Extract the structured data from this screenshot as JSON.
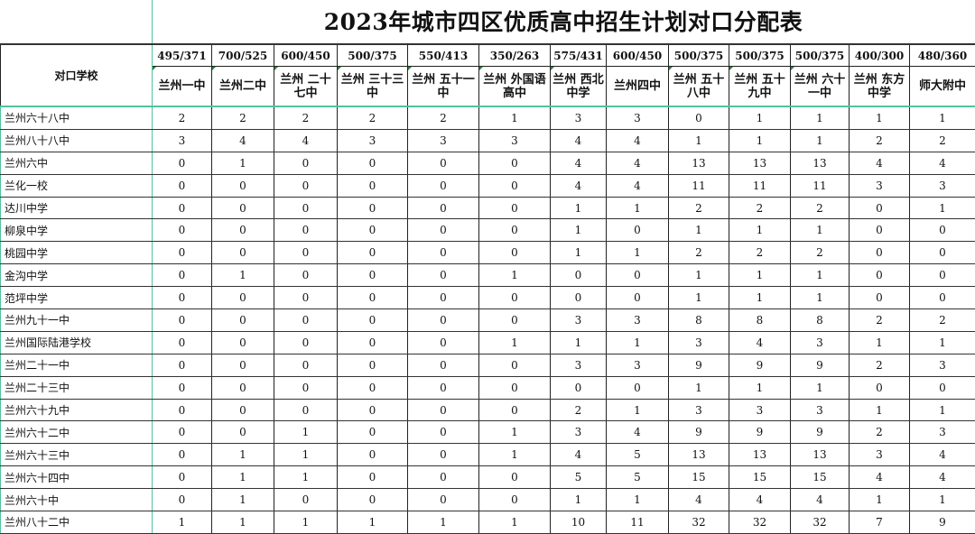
{
  "title": "2023年城市四区优质高中招生计划对口分配表",
  "corner_label": "对口学校",
  "columns": [
    {
      "quota": "495/371",
      "name": "兰州一中"
    },
    {
      "quota": "700/525",
      "name": "兰州二中"
    },
    {
      "quota": "600/450",
      "name": "兰州 二十七中"
    },
    {
      "quota": "500/375",
      "name": "兰州 三十三中"
    },
    {
      "quota": "550/413",
      "name": "兰州 五十一中"
    },
    {
      "quota": "350/263",
      "name": "兰州 外国语高中"
    },
    {
      "quota": "575/431",
      "name": "兰州 西北中学"
    },
    {
      "quota": "600/450",
      "name": "兰州四中"
    },
    {
      "quota": "500/375",
      "name": "兰州 五十八中"
    },
    {
      "quota": "500/375",
      "name": "兰州 五十九中"
    },
    {
      "quota": "500/375",
      "name": "兰州 六十一中"
    },
    {
      "quota": "400/300",
      "name": "兰州 东方中学"
    },
    {
      "quota": "480/360",
      "name": "师大附中"
    }
  ],
  "rows": [
    {
      "school": "兰州六十八中",
      "values": [
        "2",
        "2",
        "2",
        "2",
        "2",
        "1",
        "3",
        "3",
        "0",
        "1",
        "1",
        "1",
        "1"
      ]
    },
    {
      "school": "兰州八十八中",
      "values": [
        "3",
        "4",
        "4",
        "3",
        "3",
        "3",
        "4",
        "4",
        "1",
        "1",
        "1",
        "2",
        "2"
      ]
    },
    {
      "school": "兰州六中",
      "values": [
        "0",
        "1",
        "0",
        "0",
        "0",
        "0",
        "4",
        "4",
        "13",
        "13",
        "13",
        "4",
        "4"
      ]
    },
    {
      "school": "兰化一校",
      "values": [
        "0",
        "0",
        "0",
        "0",
        "0",
        "0",
        "4",
        "4",
        "11",
        "11",
        "11",
        "3",
        "3"
      ]
    },
    {
      "school": "达川中学",
      "values": [
        "0",
        "0",
        "0",
        "0",
        "0",
        "0",
        "1",
        "1",
        "2",
        "2",
        "2",
        "0",
        "1"
      ]
    },
    {
      "school": "柳泉中学",
      "values": [
        "0",
        "0",
        "0",
        "0",
        "0",
        "0",
        "1",
        "0",
        "1",
        "1",
        "1",
        "0",
        "0"
      ]
    },
    {
      "school": "桃园中学",
      "values": [
        "0",
        "0",
        "0",
        "0",
        "0",
        "0",
        "1",
        "1",
        "2",
        "2",
        "2",
        "0",
        "0"
      ]
    },
    {
      "school": "金沟中学",
      "values": [
        "0",
        "1",
        "0",
        "0",
        "0",
        "1",
        "0",
        "0",
        "1",
        "1",
        "1",
        "0",
        "0"
      ]
    },
    {
      "school": "范坪中学",
      "values": [
        "0",
        "0",
        "0",
        "0",
        "0",
        "0",
        "0",
        "0",
        "1",
        "1",
        "1",
        "0",
        "0"
      ]
    },
    {
      "school": "兰州九十一中",
      "values": [
        "0",
        "0",
        "0",
        "0",
        "0",
        "0",
        "3",
        "3",
        "8",
        "8",
        "8",
        "2",
        "2"
      ]
    },
    {
      "school": "兰州国际陆港学校",
      "values": [
        "0",
        "0",
        "0",
        "0",
        "0",
        "1",
        "1",
        "1",
        "3",
        "4",
        "3",
        "1",
        "1"
      ]
    },
    {
      "school": "兰州二十一中",
      "values": [
        "0",
        "0",
        "0",
        "0",
        "0",
        "0",
        "3",
        "3",
        "9",
        "9",
        "9",
        "2",
        "3"
      ]
    },
    {
      "school": "兰州二十三中",
      "values": [
        "0",
        "0",
        "0",
        "0",
        "0",
        "0",
        "0",
        "0",
        "1",
        "1",
        "1",
        "0",
        "0"
      ]
    },
    {
      "school": "兰州六十九中",
      "values": [
        "0",
        "0",
        "0",
        "0",
        "0",
        "0",
        "2",
        "1",
        "3",
        "3",
        "3",
        "1",
        "1"
      ]
    },
    {
      "school": "兰州六十二中",
      "values": [
        "0",
        "0",
        "1",
        "0",
        "0",
        "1",
        "3",
        "4",
        "9",
        "9",
        "9",
        "2",
        "3"
      ]
    },
    {
      "school": "兰州六十三中",
      "values": [
        "0",
        "1",
        "1",
        "0",
        "0",
        "1",
        "4",
        "5",
        "13",
        "13",
        "13",
        "3",
        "4"
      ]
    },
    {
      "school": "兰州六十四中",
      "values": [
        "0",
        "1",
        "1",
        "0",
        "0",
        "0",
        "5",
        "5",
        "15",
        "15",
        "15",
        "4",
        "4"
      ]
    },
    {
      "school": "兰州六十中",
      "values": [
        "0",
        "1",
        "0",
        "0",
        "0",
        "0",
        "1",
        "1",
        "4",
        "4",
        "4",
        "1",
        "1"
      ]
    },
    {
      "school": "兰州八十二中",
      "values": [
        "1",
        "1",
        "1",
        "1",
        "1",
        "1",
        "10",
        "11",
        "32",
        "32",
        "32",
        "7",
        "9"
      ]
    }
  ]
}
